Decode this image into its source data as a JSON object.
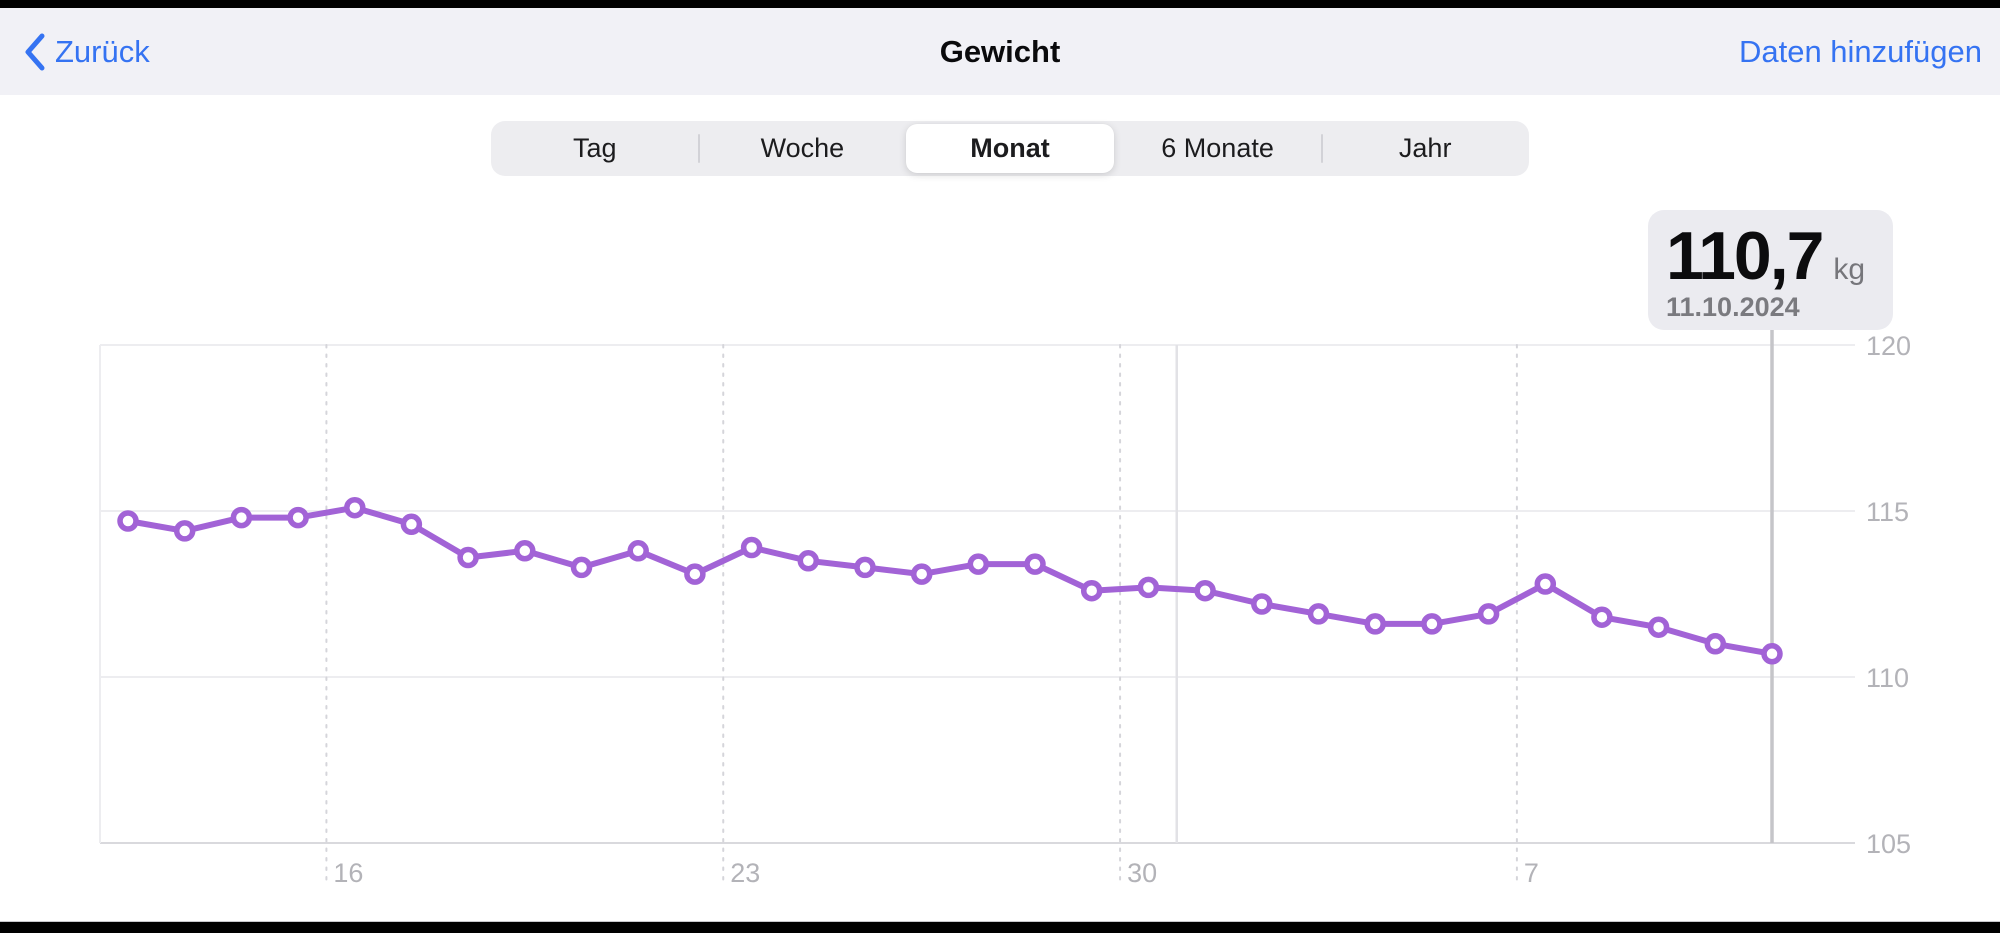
{
  "header": {
    "back_label": "Zurück",
    "title": "Gewicht",
    "add_button": "Daten hinzufügen"
  },
  "segmented_control": {
    "options": [
      "Tag",
      "Woche",
      "Monat",
      "6 Monate",
      "Jahr"
    ],
    "selected": "Monat",
    "selected_index": 2
  },
  "tooltip": {
    "value": "110,7",
    "unit": "kg",
    "date": "11.10.2024"
  },
  "colors": {
    "accent_blue": "#3573f2",
    "line_purple": "#a263d6",
    "header_bg": "#f1f1f6",
    "tooltip_bg": "#ebebf0",
    "axis_label_gray": "#b3b3b8"
  },
  "chart_data": {
    "type": "line",
    "title": "Gewicht (Monat)",
    "unit": "kg",
    "series": [
      {
        "name": "Gewicht",
        "values": [
          114.7,
          114.4,
          114.8,
          114.8,
          115.1,
          114.6,
          113.6,
          113.8,
          113.3,
          113.8,
          113.1,
          113.9,
          113.5,
          113.3,
          113.1,
          113.4,
          113.4,
          112.6,
          112.7,
          112.6,
          112.2,
          111.9,
          111.6,
          111.6,
          111.9,
          112.8,
          111.8,
          111.5,
          111.0,
          110.7
        ]
      }
    ],
    "x_days": [
      12,
      13,
      14,
      15,
      16,
      17,
      18,
      19,
      20,
      21,
      22,
      23,
      24,
      25,
      26,
      27,
      28,
      29,
      30,
      1,
      2,
      3,
      4,
      5,
      6,
      7,
      8,
      9,
      10,
      11
    ],
    "x_ticks": [
      {
        "label": "16",
        "index": 4
      },
      {
        "label": "23",
        "index": 11
      },
      {
        "label": "30",
        "index": 18
      },
      {
        "label": "7",
        "index": 25
      }
    ],
    "y_ticks": [
      120,
      115,
      110,
      105
    ],
    "ylim": [
      105,
      120
    ],
    "axis_side": "right",
    "grid": "on",
    "month_boundary_after_index": 18,
    "selected_index": 29
  }
}
